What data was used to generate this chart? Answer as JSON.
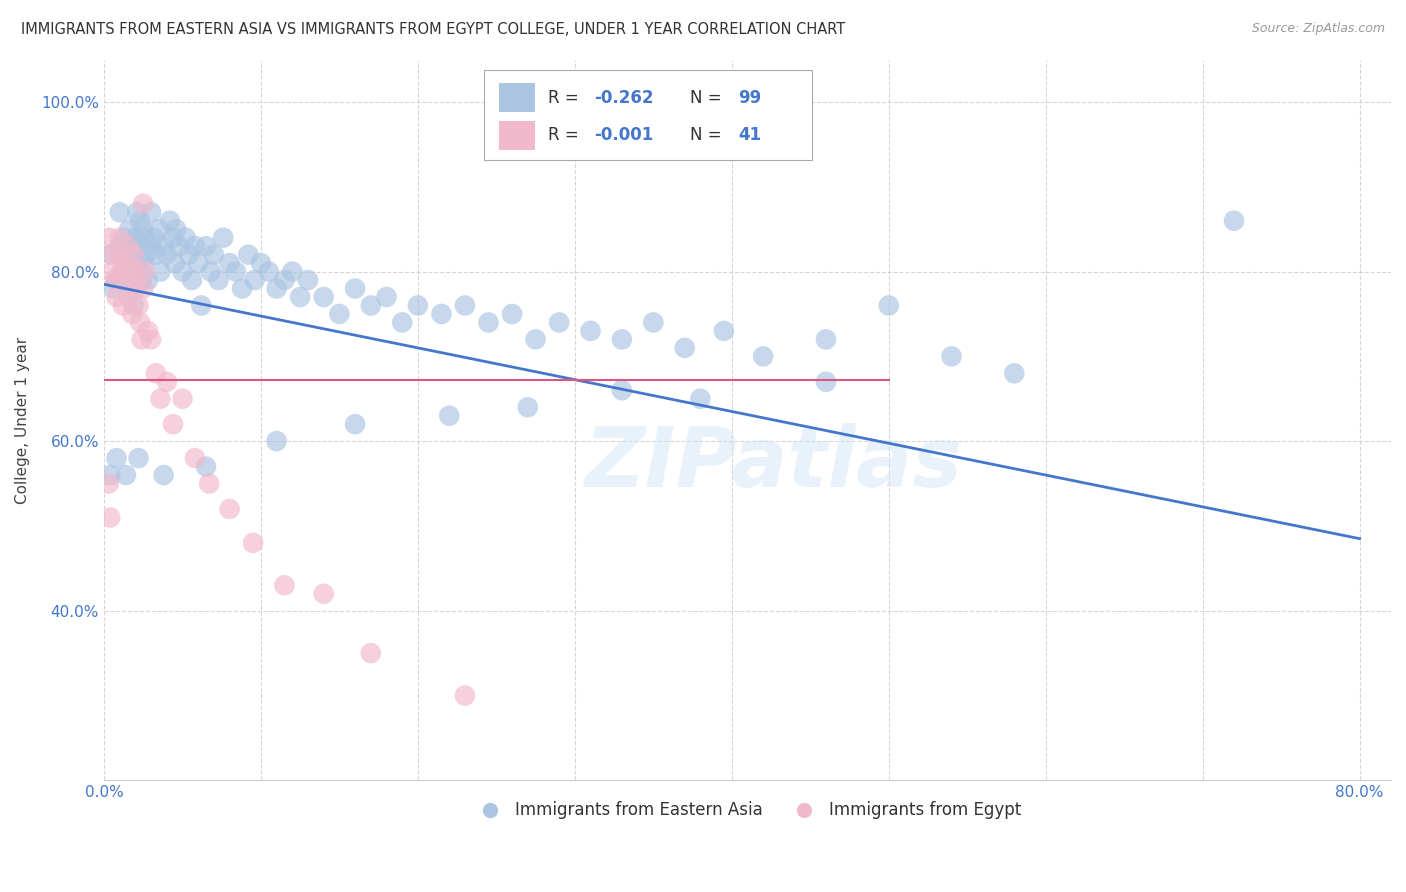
{
  "title": "IMMIGRANTS FROM EASTERN ASIA VS IMMIGRANTS FROM EGYPT COLLEGE, UNDER 1 YEAR CORRELATION CHART",
  "source": "Source: ZipAtlas.com",
  "ylabel": "College, Under 1 year",
  "xlim": [
    0.0,
    0.82
  ],
  "ylim": [
    0.2,
    1.05
  ],
  "xticks": [
    0.0,
    0.1,
    0.2,
    0.3,
    0.4,
    0.5,
    0.6,
    0.7,
    0.8
  ],
  "xticklabels": [
    "0.0%",
    "",
    "",
    "",
    "",
    "",
    "",
    "",
    "80.0%"
  ],
  "yticks": [
    0.4,
    0.6,
    0.8,
    1.0
  ],
  "yticklabels": [
    "40.0%",
    "60.0%",
    "80.0%",
    "100.0%"
  ],
  "legend_labels": [
    "Immigrants from Eastern Asia",
    "Immigrants from Egypt"
  ],
  "R_blue": -0.262,
  "N_blue": 99,
  "R_pink": -0.001,
  "N_pink": 41,
  "blue_color": "#aac4e2",
  "pink_color": "#f2b8cb",
  "blue_line_color": "#4477cc",
  "pink_line_color": "#e05580",
  "grid_color": "#cccccc",
  "background_color": "#ffffff",
  "watermark": "ZIPatlas",
  "blue_line_x0": 0.0,
  "blue_line_y0": 0.785,
  "blue_line_x1": 0.8,
  "blue_line_y1": 0.485,
  "pink_line_x0": 0.0,
  "pink_line_y0": 0.672,
  "pink_line_x1": 0.5,
  "pink_line_y1": 0.672,
  "blue_scatter_x": [
    0.004,
    0.006,
    0.008,
    0.01,
    0.01,
    0.012,
    0.013,
    0.014,
    0.015,
    0.016,
    0.017,
    0.018,
    0.019,
    0.02,
    0.02,
    0.021,
    0.022,
    0.022,
    0.023,
    0.024,
    0.025,
    0.025,
    0.026,
    0.027,
    0.028,
    0.03,
    0.03,
    0.032,
    0.033,
    0.035,
    0.036,
    0.038,
    0.04,
    0.042,
    0.044,
    0.045,
    0.046,
    0.048,
    0.05,
    0.052,
    0.054,
    0.056,
    0.058,
    0.06,
    0.062,
    0.065,
    0.068,
    0.07,
    0.073,
    0.076,
    0.08,
    0.084,
    0.088,
    0.092,
    0.096,
    0.1,
    0.105,
    0.11,
    0.115,
    0.12,
    0.125,
    0.13,
    0.14,
    0.15,
    0.16,
    0.17,
    0.18,
    0.19,
    0.2,
    0.215,
    0.23,
    0.245,
    0.26,
    0.275,
    0.29,
    0.31,
    0.33,
    0.35,
    0.37,
    0.395,
    0.42,
    0.46,
    0.5,
    0.54,
    0.58,
    0.46,
    0.38,
    0.33,
    0.27,
    0.22,
    0.16,
    0.11,
    0.065,
    0.038,
    0.022,
    0.014,
    0.008,
    0.004,
    0.72
  ],
  "blue_scatter_y": [
    0.82,
    0.78,
    0.79,
    0.83,
    0.87,
    0.8,
    0.84,
    0.82,
    0.78,
    0.85,
    0.83,
    0.8,
    0.76,
    0.84,
    0.81,
    0.87,
    0.8,
    0.83,
    0.86,
    0.79,
    0.81,
    0.85,
    0.84,
    0.82,
    0.79,
    0.83,
    0.87,
    0.84,
    0.82,
    0.85,
    0.8,
    0.83,
    0.82,
    0.86,
    0.84,
    0.81,
    0.85,
    0.83,
    0.8,
    0.84,
    0.82,
    0.79,
    0.83,
    0.81,
    0.76,
    0.83,
    0.8,
    0.82,
    0.79,
    0.84,
    0.81,
    0.8,
    0.78,
    0.82,
    0.79,
    0.81,
    0.8,
    0.78,
    0.79,
    0.8,
    0.77,
    0.79,
    0.77,
    0.75,
    0.78,
    0.76,
    0.77,
    0.74,
    0.76,
    0.75,
    0.76,
    0.74,
    0.75,
    0.72,
    0.74,
    0.73,
    0.72,
    0.74,
    0.71,
    0.73,
    0.7,
    0.72,
    0.76,
    0.7,
    0.68,
    0.67,
    0.65,
    0.66,
    0.64,
    0.63,
    0.62,
    0.6,
    0.57,
    0.56,
    0.58,
    0.56,
    0.58,
    0.56,
    0.86
  ],
  "pink_scatter_x": [
    0.003,
    0.005,
    0.006,
    0.007,
    0.008,
    0.009,
    0.01,
    0.011,
    0.012,
    0.013,
    0.014,
    0.015,
    0.016,
    0.017,
    0.018,
    0.019,
    0.02,
    0.021,
    0.022,
    0.023,
    0.024,
    0.025,
    0.026,
    0.028,
    0.03,
    0.033,
    0.036,
    0.04,
    0.044,
    0.05,
    0.058,
    0.067,
    0.08,
    0.095,
    0.115,
    0.14,
    0.17,
    0.003,
    0.004,
    0.025,
    0.23
  ],
  "pink_scatter_y": [
    0.84,
    0.8,
    0.82,
    0.79,
    0.77,
    0.82,
    0.84,
    0.8,
    0.76,
    0.81,
    0.79,
    0.83,
    0.77,
    0.8,
    0.75,
    0.82,
    0.78,
    0.8,
    0.76,
    0.74,
    0.72,
    0.78,
    0.8,
    0.73,
    0.72,
    0.68,
    0.65,
    0.67,
    0.62,
    0.65,
    0.58,
    0.55,
    0.52,
    0.48,
    0.43,
    0.42,
    0.35,
    0.55,
    0.51,
    0.88,
    0.3
  ]
}
